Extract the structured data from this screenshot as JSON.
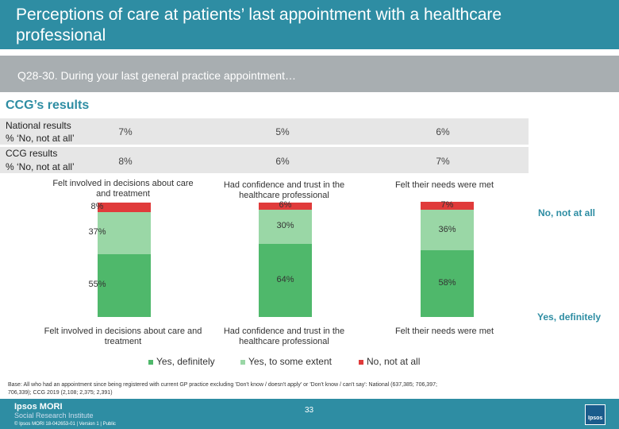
{
  "header": {
    "title": "Perceptions of care at patients’ last appointment with a healthcare professional"
  },
  "question": "Q28-30.  During your last general practice appointment…",
  "section_title": "CCG’s results",
  "table": {
    "national_label_1": "National results",
    "national_label_2": "% ‘No, not at all’",
    "national_values": [
      "7%",
      "5%",
      "6%"
    ],
    "ccg_label_1": "CCG results",
    "ccg_label_2": "% ‘No, not at all’",
    "ccg_values": [
      "8%",
      "6%",
      "7%"
    ]
  },
  "chart_data": {
    "type": "bar",
    "stacked": true,
    "categories": [
      "Felt involved in decisions about care and treatment",
      "Had confidence and trust in the healthcare professional",
      "Felt their needs were met"
    ],
    "series": [
      {
        "name": "Yes, definitely",
        "values": [
          55,
          64,
          58
        ],
        "labels": [
          "55%",
          "64%",
          "58%"
        ],
        "color": "#4fb86b"
      },
      {
        "name": "Yes, to some extent",
        "values": [
          37,
          30,
          36
        ],
        "labels": [
          "37%",
          "30%",
          "36%"
        ],
        "color": "#9ad7a6"
      },
      {
        "name": "No, not at all",
        "values": [
          8,
          6,
          7
        ],
        "labels": [
          "8%",
          "6%",
          "7%"
        ],
        "color": "#e03b3b"
      }
    ],
    "series_labels": {
      "top": "No, not at all",
      "bottom": "Yes, definitely"
    },
    "ylim": [
      0,
      100
    ]
  },
  "legend": [
    "Yes, definitely",
    "Yes, to some extent",
    "No, not at all"
  ],
  "base_note": "Base: All who had an appointment since being registered with current GP practice excluding 'Don't know / doesn't apply' or 'Don't know / can't say': National (637,385; 706,397; 706,339); CCG 2019 (2,108; 2,375; 2,391)",
  "footer": {
    "logo_line1": "Ipsos MORI",
    "logo_line2": "Social Research Institute",
    "small_text": "© Ipsos MORI     18-042653-01 | Version 1 | Public",
    "page_number": "33",
    "badge_text": "Ipsos"
  }
}
